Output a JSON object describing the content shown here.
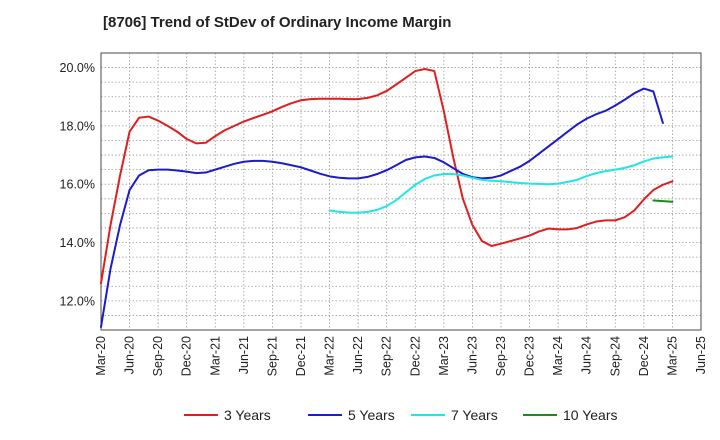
{
  "chart_data": {
    "type": "line",
    "title": "[8706]  Trend of StDev of Ordinary Income Margin",
    "xlabel": "",
    "ylabel": "",
    "x_ticks": [
      "Mar-20",
      "Jun-20",
      "Sep-20",
      "Dec-20",
      "Mar-21",
      "Jun-21",
      "Sep-21",
      "Dec-21",
      "Mar-22",
      "Jun-22",
      "Sep-22",
      "Dec-22",
      "Mar-23",
      "Jun-23",
      "Sep-23",
      "Dec-23",
      "Mar-24",
      "Jun-24",
      "Sep-24",
      "Dec-24",
      "Mar-25",
      "Jun-25"
    ],
    "y_ticks": [
      "12.0%",
      "14.0%",
      "16.0%",
      "18.0%",
      "20.0%"
    ],
    "y_tick_values": [
      12,
      14,
      16,
      18,
      20
    ],
    "ylim": [
      11.0,
      20.5
    ],
    "grid": true,
    "legend_position": "bottom",
    "series": [
      {
        "name": "3 Years",
        "color": "#dd1f1f",
        "points": [
          [
            "Mar-20",
            12.6
          ],
          [
            "Apr-20",
            14.6
          ],
          [
            "May-20",
            16.3
          ],
          [
            "Jun-20",
            17.8
          ],
          [
            "Jul-20",
            18.28
          ],
          [
            "Aug-20",
            18.32
          ],
          [
            "Sep-20",
            18.18
          ],
          [
            "Oct-20",
            18.0
          ],
          [
            "Nov-20",
            17.8
          ],
          [
            "Dec-20",
            17.55
          ],
          [
            "Jan-21",
            17.4
          ],
          [
            "Feb-21",
            17.42
          ],
          [
            "Mar-21",
            17.65
          ],
          [
            "Apr-21",
            17.85
          ],
          [
            "May-21",
            18.0
          ],
          [
            "Jun-21",
            18.15
          ],
          [
            "Jul-21",
            18.27
          ],
          [
            "Aug-21",
            18.38
          ],
          [
            "Sep-21",
            18.5
          ],
          [
            "Oct-21",
            18.65
          ],
          [
            "Nov-21",
            18.78
          ],
          [
            "Dec-21",
            18.88
          ],
          [
            "Jan-22",
            18.92
          ],
          [
            "Feb-22",
            18.93
          ],
          [
            "Mar-22",
            18.93
          ],
          [
            "Apr-22",
            18.93
          ],
          [
            "May-22",
            18.92
          ],
          [
            "Jun-22",
            18.92
          ],
          [
            "Jul-22",
            18.96
          ],
          [
            "Aug-22",
            19.05
          ],
          [
            "Sep-22",
            19.2
          ],
          [
            "Oct-22",
            19.42
          ],
          [
            "Nov-22",
            19.65
          ],
          [
            "Dec-22",
            19.88
          ],
          [
            "Jan-23",
            19.95
          ],
          [
            "Feb-23",
            19.88
          ],
          [
            "Mar-23",
            18.5
          ],
          [
            "Apr-23",
            16.9
          ],
          [
            "May-23",
            15.5
          ],
          [
            "Jun-23",
            14.6
          ],
          [
            "Jul-23",
            14.05
          ],
          [
            "Aug-23",
            13.88
          ],
          [
            "Sep-23",
            13.96
          ],
          [
            "Oct-23",
            14.05
          ],
          [
            "Nov-23",
            14.14
          ],
          [
            "Dec-23",
            14.24
          ],
          [
            "Jan-24",
            14.38
          ],
          [
            "Feb-24",
            14.48
          ],
          [
            "Mar-24",
            14.45
          ],
          [
            "Apr-24",
            14.45
          ],
          [
            "May-24",
            14.5
          ],
          [
            "Jun-24",
            14.62
          ],
          [
            "Jul-24",
            14.72
          ],
          [
            "Aug-24",
            14.76
          ],
          [
            "Sep-24",
            14.76
          ],
          [
            "Oct-24",
            14.87
          ],
          [
            "Nov-24",
            15.1
          ],
          [
            "Dec-24",
            15.48
          ],
          [
            "Jan-25",
            15.8
          ],
          [
            "Feb-25",
            15.98
          ],
          [
            "Mar-25",
            16.1
          ]
        ]
      },
      {
        "name": "5 Years",
        "color": "#1c1ccc",
        "points": [
          [
            "Mar-20",
            11.1
          ],
          [
            "Apr-20",
            13.1
          ],
          [
            "May-20",
            14.6
          ],
          [
            "Jun-20",
            15.8
          ],
          [
            "Jul-20",
            16.3
          ],
          [
            "Aug-20",
            16.48
          ],
          [
            "Sep-20",
            16.5
          ],
          [
            "Oct-20",
            16.5
          ],
          [
            "Nov-20",
            16.47
          ],
          [
            "Dec-20",
            16.43
          ],
          [
            "Jan-21",
            16.38
          ],
          [
            "Feb-21",
            16.4
          ],
          [
            "Mar-21",
            16.5
          ],
          [
            "Apr-21",
            16.6
          ],
          [
            "May-21",
            16.7
          ],
          [
            "Jun-21",
            16.77
          ],
          [
            "Jul-21",
            16.8
          ],
          [
            "Aug-21",
            16.8
          ],
          [
            "Sep-21",
            16.77
          ],
          [
            "Oct-21",
            16.72
          ],
          [
            "Nov-21",
            16.65
          ],
          [
            "Dec-21",
            16.58
          ],
          [
            "Jan-22",
            16.47
          ],
          [
            "Feb-22",
            16.36
          ],
          [
            "Mar-22",
            16.27
          ],
          [
            "Apr-22",
            16.22
          ],
          [
            "May-22",
            16.2
          ],
          [
            "Jun-22",
            16.2
          ],
          [
            "Jul-22",
            16.25
          ],
          [
            "Aug-22",
            16.35
          ],
          [
            "Sep-22",
            16.48
          ],
          [
            "Oct-22",
            16.65
          ],
          [
            "Nov-22",
            16.83
          ],
          [
            "Dec-22",
            16.92
          ],
          [
            "Jan-23",
            16.95
          ],
          [
            "Feb-23",
            16.9
          ],
          [
            "Mar-23",
            16.75
          ],
          [
            "Apr-23",
            16.55
          ],
          [
            "May-23",
            16.35
          ],
          [
            "Jun-23",
            16.24
          ],
          [
            "Jul-23",
            16.2
          ],
          [
            "Aug-23",
            16.22
          ],
          [
            "Sep-23",
            16.3
          ],
          [
            "Oct-23",
            16.45
          ],
          [
            "Nov-23",
            16.6
          ],
          [
            "Dec-23",
            16.8
          ],
          [
            "Jan-24",
            17.05
          ],
          [
            "Feb-24",
            17.3
          ],
          [
            "Mar-24",
            17.55
          ],
          [
            "Apr-24",
            17.8
          ],
          [
            "May-24",
            18.05
          ],
          [
            "Jun-24",
            18.25
          ],
          [
            "Jul-24",
            18.4
          ],
          [
            "Aug-24",
            18.52
          ],
          [
            "Sep-24",
            18.7
          ],
          [
            "Oct-24",
            18.9
          ],
          [
            "Nov-24",
            19.12
          ],
          [
            "Dec-24",
            19.28
          ],
          [
            "Jan-25",
            19.18
          ],
          [
            "Feb-25",
            18.1
          ]
        ]
      },
      {
        "name": "7 Years",
        "color": "#22e6e6",
        "points": [
          [
            "Mar-22",
            15.1
          ],
          [
            "Apr-22",
            15.05
          ],
          [
            "May-22",
            15.03
          ],
          [
            "Jun-22",
            15.02
          ],
          [
            "Jul-22",
            15.05
          ],
          [
            "Aug-22",
            15.12
          ],
          [
            "Sep-22",
            15.25
          ],
          [
            "Oct-22",
            15.45
          ],
          [
            "Nov-22",
            15.72
          ],
          [
            "Dec-22",
            15.98
          ],
          [
            "Jan-23",
            16.18
          ],
          [
            "Feb-23",
            16.3
          ],
          [
            "Mar-23",
            16.35
          ],
          [
            "Apr-23",
            16.35
          ],
          [
            "May-23",
            16.3
          ],
          [
            "Jun-23",
            16.22
          ],
          [
            "Jul-23",
            16.15
          ],
          [
            "Aug-23",
            16.12
          ],
          [
            "Sep-23",
            16.1
          ],
          [
            "Oct-23",
            16.07
          ],
          [
            "Nov-23",
            16.04
          ],
          [
            "Dec-23",
            16.02
          ],
          [
            "Jan-24",
            16.01
          ],
          [
            "Feb-24",
            16.0
          ],
          [
            "Mar-24",
            16.02
          ],
          [
            "Apr-24",
            16.08
          ],
          [
            "May-24",
            16.15
          ],
          [
            "Jun-24",
            16.28
          ],
          [
            "Jul-24",
            16.38
          ],
          [
            "Aug-24",
            16.45
          ],
          [
            "Sep-24",
            16.5
          ],
          [
            "Oct-24",
            16.56
          ],
          [
            "Nov-24",
            16.65
          ],
          [
            "Dec-24",
            16.78
          ],
          [
            "Jan-25",
            16.88
          ],
          [
            "Feb-25",
            16.92
          ],
          [
            "Mar-25",
            16.95
          ]
        ]
      },
      {
        "name": "10 Years",
        "color": "#1e8a1e",
        "points": [
          [
            "Jan-25",
            15.44
          ],
          [
            "Feb-25",
            15.42
          ],
          [
            "Mar-25",
            15.4
          ]
        ]
      }
    ]
  }
}
